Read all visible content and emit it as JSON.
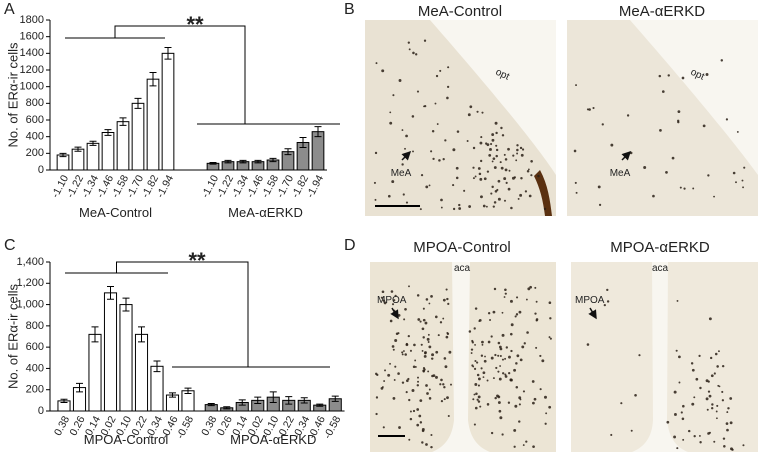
{
  "panels": {
    "a": "A",
    "b": "B",
    "c": "C",
    "d": "D"
  },
  "chart_data": [
    {
      "type": "bar",
      "ylabel": "No. of ERα-ir cells",
      "annotation": "**",
      "ylim": [
        0,
        1800
      ],
      "yticks": [
        0,
        200,
        400,
        600,
        800,
        1000,
        1200,
        1400,
        1600,
        1800
      ],
      "groups": [
        {
          "name": "MeA-Control",
          "color": "#ffffff",
          "categories": [
            "-1.10",
            "-1.22",
            "-1.34",
            "-1.46",
            "-1.58",
            "-1.70",
            "-1.82",
            "-1.94"
          ],
          "values": [
            180,
            250,
            320,
            450,
            580,
            800,
            1090,
            1400
          ],
          "errors": [
            20,
            25,
            25,
            35,
            45,
            60,
            80,
            70
          ]
        },
        {
          "name": "MeA-αERKD",
          "color": "#8c8c8c",
          "categories": [
            "-1.10",
            "-1.22",
            "-1.34",
            "-1.46",
            "-1.58",
            "-1.70",
            "-1.82",
            "-1.94"
          ],
          "values": [
            80,
            100,
            100,
            100,
            120,
            220,
            330,
            460
          ],
          "errors": [
            10,
            15,
            15,
            15,
            20,
            35,
            60,
            60
          ]
        }
      ]
    },
    {
      "type": "bar",
      "ylabel": "No. of ERα-ir cells",
      "annotation": "**",
      "ylim": [
        0,
        1400
      ],
      "yticks": [
        0,
        200,
        400,
        600,
        800,
        {
          "value": 1000,
          "label": "1,000"
        },
        {
          "value": 1200,
          "label": "1,200"
        },
        {
          "value": 1400,
          "label": "1,400"
        }
      ],
      "groups": [
        {
          "name": "MPOA-Control",
          "color": "#ffffff",
          "categories": [
            "0.38",
            "0.26",
            "0.14",
            "0.02",
            "-0.10",
            "-0.22",
            "-0.34",
            "-0.46",
            "-0.58"
          ],
          "values": [
            95,
            220,
            720,
            1110,
            1000,
            720,
            420,
            150,
            190
          ],
          "errors": [
            15,
            40,
            70,
            60,
            60,
            70,
            50,
            20,
            25
          ]
        },
        {
          "name": "MPOA-αERKD",
          "color": "#8c8c8c",
          "categories": [
            "0.38",
            "0.26",
            "0.14",
            "0.02",
            "-0.10",
            "-0.22",
            "-0.34",
            "-0.46",
            "-0.58"
          ],
          "values": [
            60,
            30,
            80,
            100,
            130,
            100,
            100,
            55,
            115
          ],
          "errors": [
            10,
            10,
            25,
            30,
            50,
            35,
            25,
            10,
            25
          ]
        }
      ]
    }
  ],
  "micrographs": {
    "b": [
      {
        "title": "MeA-Control",
        "labels": [
          "opt",
          "MeA"
        ]
      },
      {
        "title": "MeA-αERKD",
        "labels": [
          "opt",
          "MeA"
        ]
      }
    ],
    "d": [
      {
        "title": "MPOA-Control",
        "labels": [
          "aca",
          "MPOA"
        ]
      },
      {
        "title": "MPOA-αERKD",
        "labels": [
          "aca",
          "MPOA"
        ]
      }
    ]
  }
}
